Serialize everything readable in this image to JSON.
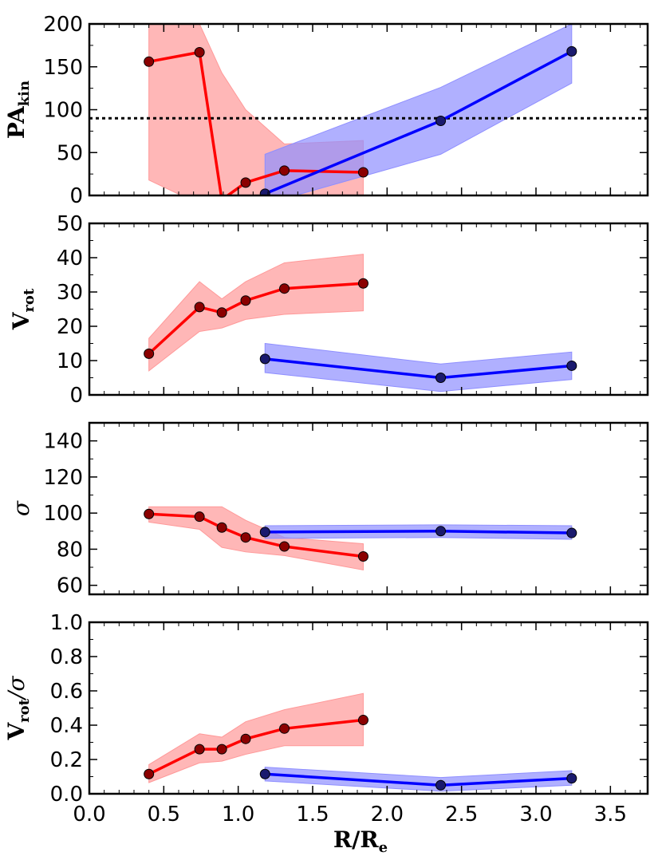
{
  "chart_data": {
    "type": "line",
    "layout": "4 vertically stacked panels sharing x-axis",
    "xlabel": {
      "main": "R/R",
      "sub": "e"
    },
    "xlim": [
      0.0,
      3.75
    ],
    "xticks": [
      "0.0",
      "0.5",
      "1.0",
      "1.5",
      "2.0",
      "2.5",
      "3.0",
      "3.5"
    ],
    "colors": {
      "red_line": "#ff0000",
      "red_marker": "#8b0000",
      "red_band": "#ff9999",
      "blue_line": "#0000ff",
      "blue_marker": "#1a1a6e",
      "blue_band": "#8f8fff"
    },
    "panels": [
      {
        "id": "pa",
        "ylabel": {
          "main": "PA",
          "sub": "kin",
          "style": "bold"
        },
        "ylim": [
          0,
          200
        ],
        "yticks": [
          "0",
          "50",
          "100",
          "150",
          "200"
        ],
        "hline": 90,
        "series": [
          {
            "name": "red",
            "x": [
              0.4,
              0.74,
              0.89,
              1.05,
              1.31,
              1.84
            ],
            "y": [
              156,
              167,
              -5,
              15,
              29,
              27
            ],
            "band_lo": [
              18,
              -10,
              -10,
              -10,
              -10,
              -10
            ],
            "band_hi": [
              200,
              200,
              143,
              100,
              60,
              64
            ]
          },
          {
            "name": "blue",
            "x": [
              1.18,
              2.36,
              3.24
            ],
            "y": [
              2,
              87,
              168
            ],
            "band_lo": [
              -10,
              48,
              131
            ],
            "band_hi": [
              48,
              126,
              200
            ]
          }
        ]
      },
      {
        "id": "vrot",
        "ylabel": {
          "main": "V",
          "sub": "rot",
          "style": "bold"
        },
        "ylim": [
          0,
          50
        ],
        "yticks": [
          "0",
          "10",
          "20",
          "30",
          "40",
          "50"
        ],
        "series": [
          {
            "name": "red",
            "x": [
              0.4,
              0.74,
              0.89,
              1.05,
              1.31,
              1.84
            ],
            "y": [
              12,
              25.6,
              24,
              27.5,
              31,
              32.5
            ],
            "band_lo": [
              7,
              18.5,
              19.5,
              22,
              23.5,
              24.5
            ],
            "band_hi": [
              16.5,
              33,
              28,
              33,
              38.5,
              41
            ]
          },
          {
            "name": "blue",
            "x": [
              1.18,
              2.36,
              3.24
            ],
            "y": [
              10.5,
              5,
              8.5
            ],
            "band_lo": [
              6.5,
              1,
              4.5
            ],
            "band_hi": [
              15,
              9,
              12.5
            ]
          }
        ]
      },
      {
        "id": "sigma",
        "ylabel": {
          "main": "σ",
          "sub": "",
          "style": "italic"
        },
        "ylim": [
          55,
          150
        ],
        "yticks": [
          "60",
          "80",
          "100",
          "120",
          "140"
        ],
        "series": [
          {
            "name": "red",
            "x": [
              0.4,
              0.74,
              0.89,
              1.05,
              1.31,
              1.84
            ],
            "y": [
              99.5,
              98,
              92,
              86.5,
              81.5,
              76
            ],
            "band_lo": [
              95,
              91,
              81,
              78.5,
              76.5,
              68.5
            ],
            "band_hi": [
              103.5,
              103.5,
              103.5,
              96,
              86.5,
              83
            ]
          },
          {
            "name": "blue",
            "x": [
              1.18,
              2.36,
              3.24
            ],
            "y": [
              89.5,
              90,
              89
            ],
            "band_lo": [
              86,
              86.5,
              85.5
            ],
            "band_hi": [
              93,
              93.5,
              93
            ]
          }
        ]
      },
      {
        "id": "vsig",
        "ylabel": {
          "main": "V",
          "sub": "rot",
          "tail": "/σ",
          "style": "bold"
        },
        "ylim": [
          0,
          1.0
        ],
        "yticks": [
          "0.0",
          "0.2",
          "0.4",
          "0.6",
          "0.8",
          "1.0"
        ],
        "series": [
          {
            "name": "red",
            "x": [
              0.4,
              0.74,
              0.89,
              1.05,
              1.31,
              1.84
            ],
            "y": [
              0.115,
              0.26,
              0.26,
              0.32,
              0.38,
              0.43
            ],
            "band_lo": [
              0.065,
              0.18,
              0.19,
              0.23,
              0.28,
              0.28
            ],
            "band_hi": [
              0.17,
              0.35,
              0.33,
              0.42,
              0.49,
              0.585
            ]
          },
          {
            "name": "blue",
            "x": [
              1.18,
              2.36,
              3.24
            ],
            "y": [
              0.115,
              0.05,
              0.09
            ],
            "band_lo": [
              0.075,
              0.015,
              0.05
            ],
            "band_hi": [
              0.155,
              0.095,
              0.135
            ]
          }
        ]
      }
    ]
  }
}
